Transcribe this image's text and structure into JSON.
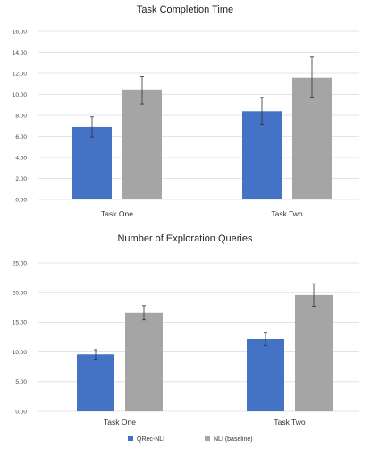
{
  "chart_data": [
    {
      "type": "bar",
      "title": "Task Completion Time",
      "categories": [
        "Task One",
        "Task Two"
      ],
      "ylim": [
        0,
        16
      ],
      "yticks": [
        "0.00",
        "2.00",
        "4.00",
        "6.00",
        "8.00",
        "10.00",
        "12.00",
        "14.00",
        "16.00"
      ],
      "grid": true,
      "series": [
        {
          "name": "QRec-NLI",
          "color": "#4472c4",
          "values": [
            6.9,
            8.4
          ],
          "errors": [
            0.95,
            1.3
          ]
        },
        {
          "name": "NLI (baseline)",
          "color": "#a5a5a5",
          "values": [
            10.4,
            11.6
          ],
          "errors": [
            1.3,
            1.95
          ]
        }
      ]
    },
    {
      "type": "bar",
      "title": "Number of Exploration Queries",
      "categories": [
        "Task One",
        "Task Two"
      ],
      "ylim": [
        0,
        25
      ],
      "yticks": [
        "0.00",
        "5.00",
        "10.00",
        "15.00",
        "20.00",
        "25.00"
      ],
      "grid": true,
      "series": [
        {
          "name": "QRec-NLI",
          "color": "#4472c4",
          "values": [
            9.6,
            12.2
          ],
          "errors": [
            0.8,
            1.1
          ]
        },
        {
          "name": "NLI (baseline)",
          "color": "#a5a5a5",
          "values": [
            16.6,
            19.6
          ],
          "errors": [
            1.2,
            1.9
          ]
        }
      ]
    }
  ],
  "legend": {
    "position": "bottom",
    "items": [
      {
        "label": "QRec-NLI",
        "color": "#4472c4"
      },
      {
        "label": "NLI (baseline)",
        "color": "#a5a5a5"
      }
    ]
  }
}
